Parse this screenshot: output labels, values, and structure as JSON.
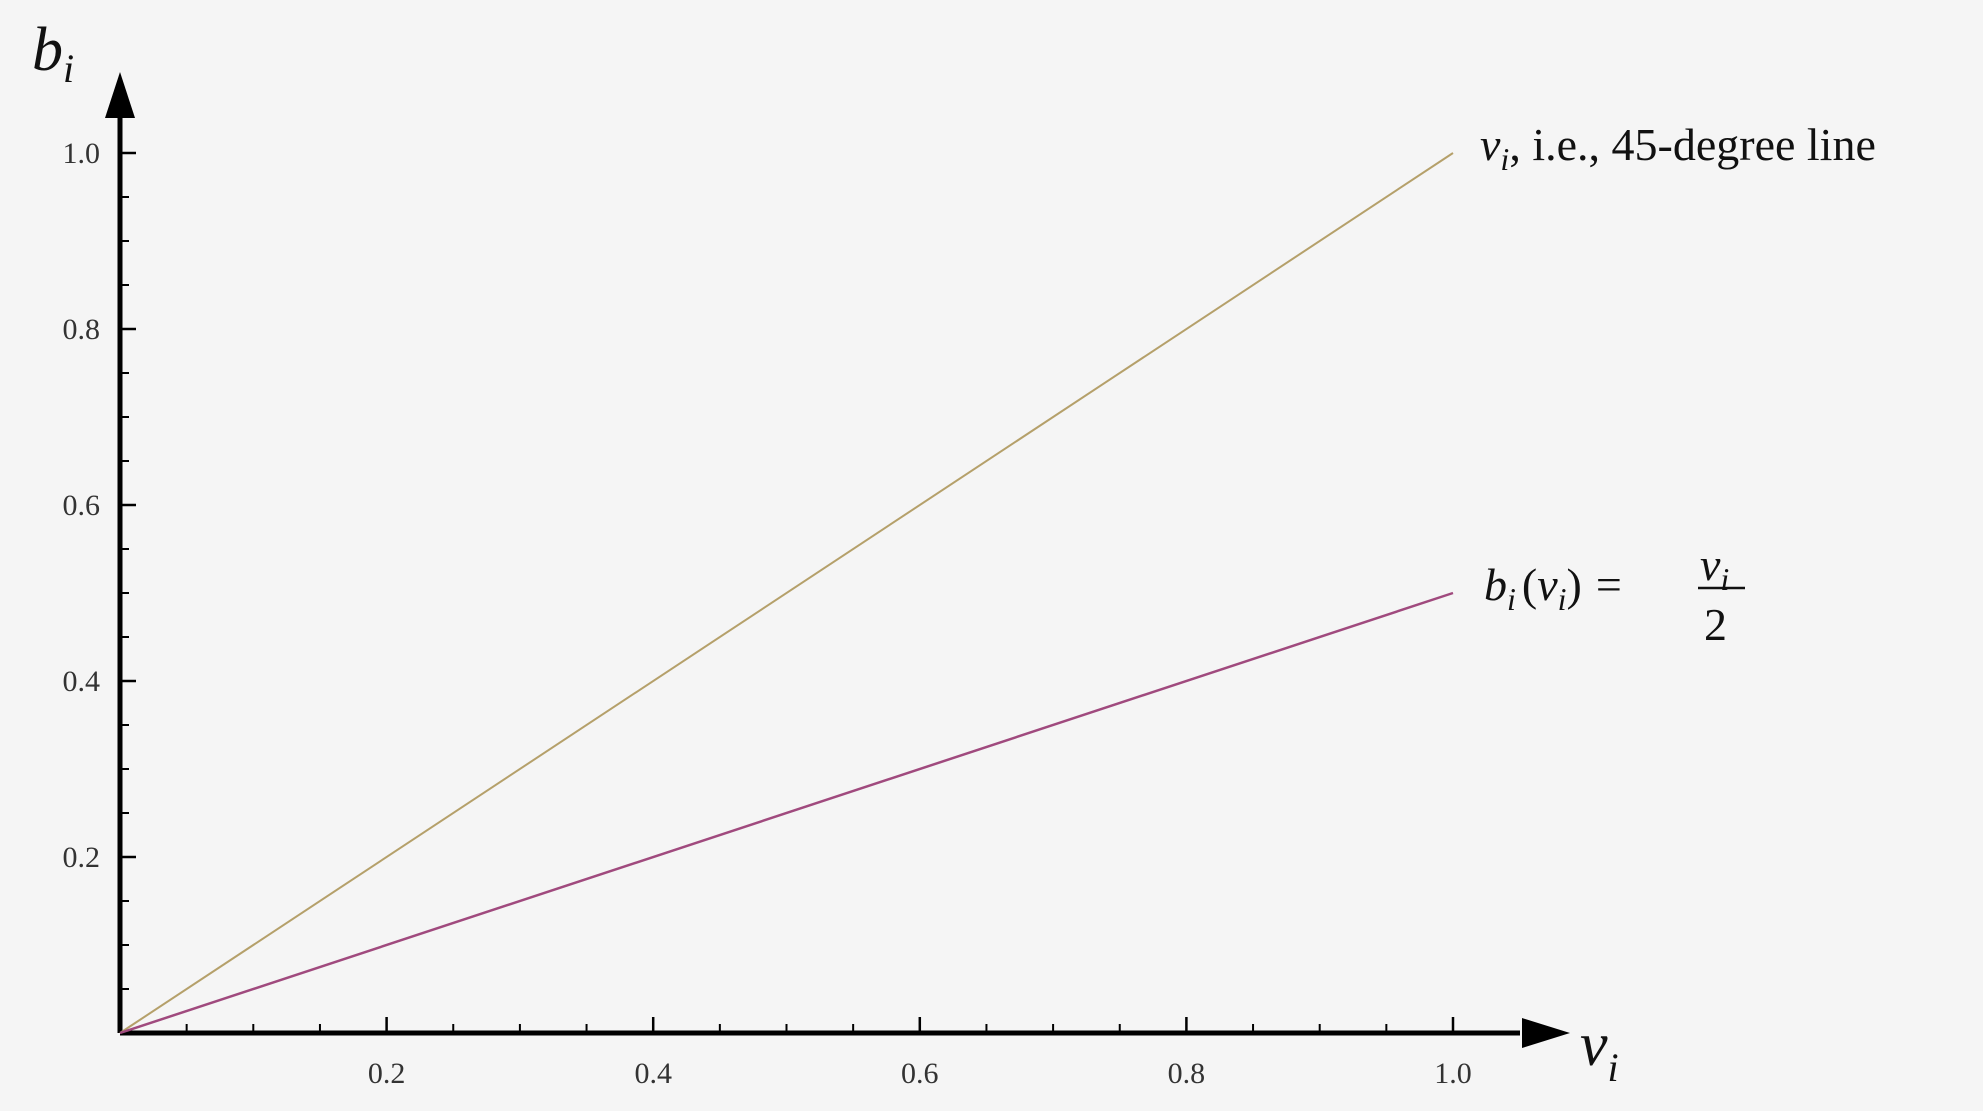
{
  "chart_data": {
    "type": "line",
    "xlabel": {
      "base": "v",
      "sub": "i"
    },
    "ylabel": {
      "base": "b",
      "sub": "i"
    },
    "xlim": [
      0,
      1.05
    ],
    "ylim": [
      0,
      1.05
    ],
    "x_ticks": [
      0.2,
      0.4,
      0.6,
      0.8,
      1.0
    ],
    "x_tick_labels": [
      "0.2",
      "0.4",
      "0.6",
      "0.8",
      "1.0"
    ],
    "y_ticks": [
      0.2,
      0.4,
      0.6,
      0.8,
      1.0
    ],
    "y_tick_labels": [
      "0.2",
      "0.4",
      "0.6",
      "0.8",
      "1.0"
    ],
    "minor_tick_step": 0.05,
    "grid": false,
    "series": [
      {
        "color": "#b5a06a",
        "x": [
          0,
          1.0
        ],
        "y": [
          0,
          1.0
        ],
        "annotation": {
          "base": "v",
          "sub": "i",
          "rest": ", i.e., 45-degree line"
        }
      },
      {
        "color": "#a04a7e",
        "x": [
          0,
          1.0
        ],
        "y": [
          0,
          0.5
        ],
        "annotation": {
          "lhs_base": "b",
          "lhs_sub": "i",
          "paren_open": "(",
          "arg_base": "v",
          "arg_sub": "i",
          "paren_close": ")",
          "equals": "=",
          "num_base": "v",
          "num_sub": "i",
          "den": "2"
        }
      }
    ]
  }
}
